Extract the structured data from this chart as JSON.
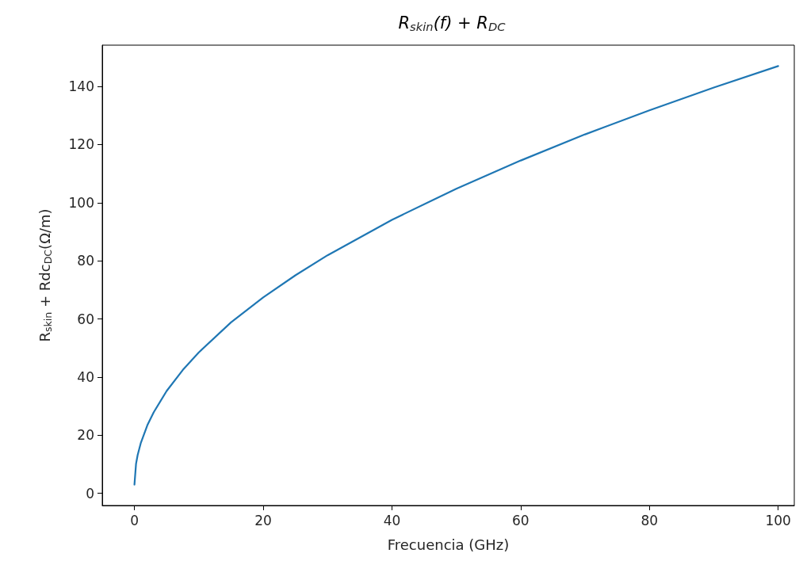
{
  "chart_data": {
    "type": "line",
    "title": "R$_{skin}$(f) + R$_{DC}$",
    "xlabel": "Frecuencia (GHz)",
    "ylabel": "R$_{skin}$ + Rdc$_{DC}$(Ω/m)",
    "series": [
      {
        "color": "#1f77b4",
        "x": [
          0,
          0.25,
          0.5,
          1,
          2,
          3,
          5,
          7.5,
          10,
          15,
          20,
          25,
          30,
          40,
          50,
          60,
          70,
          80,
          90,
          100
        ],
        "values": [
          3,
          10.2,
          13.2,
          17.4,
          23.4,
          27.9,
          35.2,
          42.4,
          48.5,
          58.8,
          67.4,
          75,
          81.9,
          94.1,
          104.8,
          114.5,
          123.5,
          131.8,
          139.6,
          147
        ]
      }
    ],
    "xlim": [
      -5,
      102.5
    ],
    "xticks": [
      0,
      20,
      40,
      60,
      80,
      100
    ],
    "ylim": [
      -4.2,
      154.2
    ],
    "yticks": [
      0,
      20,
      40,
      60,
      80,
      100,
      120,
      140
    ],
    "grid": false,
    "marker": "none",
    "line_style": "solid"
  }
}
